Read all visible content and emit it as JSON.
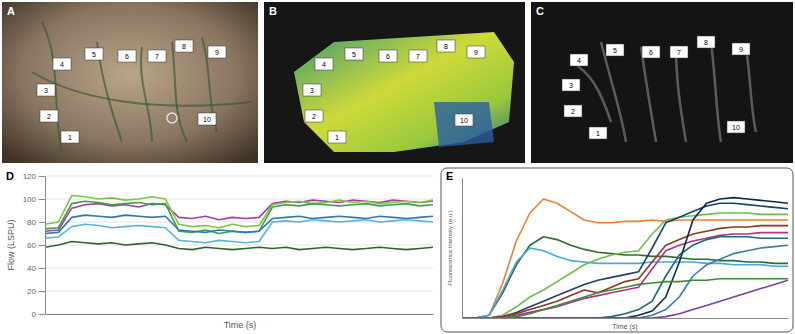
{
  "panels": [
    {
      "label": "A",
      "markers": [
        "1",
        "2",
        "3",
        "4",
        "5",
        "6",
        "7",
        "8",
        "9",
        "10"
      ]
    },
    {
      "label": "B",
      "markers": [
        "1",
        "2",
        "3",
        "4",
        "5",
        "6",
        "7",
        "8",
        "9",
        "10"
      ]
    },
    {
      "label": "C",
      "markers": [
        "1",
        "2",
        "3",
        "4",
        "5",
        "6",
        "7",
        "8",
        "9",
        "10"
      ]
    }
  ],
  "chart_data": [
    {
      "type": "line",
      "title": "D",
      "x_label": "Time (s)",
      "y_label": "Flow (LSPU)",
      "x": [
        0,
        1,
        2,
        3,
        4,
        5,
        6,
        7,
        8,
        9,
        10,
        11,
        12,
        13,
        14,
        15,
        16,
        17,
        18,
        19,
        20,
        21,
        22,
        23,
        24,
        25,
        26,
        27,
        28,
        29
      ],
      "xlim": [
        0,
        29
      ],
      "ylim": [
        0,
        120
      ],
      "yticks": [
        0,
        20,
        40,
        60,
        80,
        100,
        120
      ],
      "grid": true,
      "tick_labels": "y",
      "series": [
        {
          "color": "#a23fa6",
          "values": [
            72,
            73,
            92,
            95,
            96,
            94,
            95,
            93,
            96,
            95,
            84,
            83,
            85,
            82,
            84,
            83,
            84,
            96,
            98,
            97,
            99,
            98,
            97,
            99,
            98,
            97,
            99,
            98,
            97,
            98
          ]
        },
        {
          "color": "#7cc846",
          "values": [
            78,
            80,
            103,
            102,
            100,
            101,
            99,
            100,
            102,
            100,
            78,
            76,
            77,
            75,
            78,
            76,
            77,
            95,
            97,
            98,
            96,
            97,
            99,
            97,
            98,
            96,
            97,
            98,
            97,
            99
          ]
        },
        {
          "color": "#3e9e48",
          "values": [
            74,
            75,
            96,
            98,
            97,
            95,
            96,
            97,
            95,
            96,
            72,
            71,
            73,
            70,
            72,
            71,
            72,
            93,
            95,
            94,
            96,
            95,
            94,
            95,
            96,
            94,
            95,
            96,
            94,
            95
          ]
        },
        {
          "color": "#2f78b7",
          "values": [
            70,
            71,
            84,
            86,
            85,
            84,
            86,
            85,
            84,
            85,
            73,
            72,
            71,
            73,
            72,
            71,
            72,
            83,
            84,
            85,
            83,
            84,
            85,
            84,
            83,
            85,
            84,
            83,
            84,
            85
          ]
        },
        {
          "color": "#5bb3e2",
          "values": [
            66,
            67,
            76,
            78,
            77,
            75,
            76,
            77,
            76,
            75,
            64,
            63,
            62,
            64,
            63,
            62,
            63,
            80,
            81,
            80,
            82,
            81,
            80,
            81,
            82,
            80,
            81,
            82,
            81,
            80
          ]
        },
        {
          "color": "#2b6630",
          "values": [
            58,
            60,
            63,
            62,
            61,
            62,
            60,
            61,
            62,
            60,
            57,
            56,
            58,
            57,
            56,
            57,
            58,
            57,
            58,
            56,
            57,
            58,
            57,
            56,
            57,
            58,
            57,
            56,
            57,
            58
          ]
        }
      ]
    },
    {
      "type": "line",
      "title": "E",
      "x_label": "Time (s)",
      "y_label": "Fluorescence intensity (a.u.)",
      "x": [
        0,
        1,
        2,
        3,
        4,
        5,
        6,
        7,
        8,
        9,
        10,
        11,
        12,
        13,
        14,
        15,
        16,
        17,
        18,
        19,
        20,
        21,
        22,
        23,
        24
      ],
      "xlim": [
        0,
        24
      ],
      "ylim": [
        0,
        100
      ],
      "tick_labels": false,
      "series": [
        {
          "color": "#f07f2f",
          "values": [
            0,
            0,
            2,
            25,
            55,
            75,
            85,
            82,
            76,
            70,
            68,
            68,
            69,
            69,
            70,
            69,
            70,
            70,
            70,
            70,
            70,
            70,
            70,
            70,
            70
          ]
        },
        {
          "color": "#2d6a36",
          "values": [
            0,
            0,
            2,
            18,
            38,
            52,
            58,
            56,
            52,
            49,
            47,
            46,
            45,
            45,
            44,
            44,
            43,
            42,
            42,
            41,
            41,
            40,
            40,
            39,
            39
          ]
        },
        {
          "color": "#4aa8dd",
          "values": [
            0,
            0,
            2,
            20,
            40,
            50,
            48,
            44,
            41,
            40,
            39,
            39,
            39,
            39,
            40,
            40,
            40,
            40,
            39,
            39,
            38,
            38,
            38,
            37,
            37
          ]
        },
        {
          "color": "#6cc04a",
          "values": [
            0,
            0,
            0,
            2,
            8,
            15,
            20,
            26,
            32,
            38,
            42,
            45,
            47,
            48,
            60,
            70,
            72,
            73,
            74,
            75,
            75,
            75,
            74,
            74,
            74
          ]
        },
        {
          "color": "#1f3f6b",
          "values": [
            0,
            0,
            0,
            1,
            4,
            8,
            12,
            16,
            20,
            24,
            27,
            29,
            31,
            33,
            50,
            68,
            72,
            76,
            80,
            82,
            82,
            81,
            80,
            79,
            78
          ]
        },
        {
          "color": "#8b3a1e",
          "values": [
            0,
            0,
            0,
            1,
            3,
            6,
            9,
            12,
            16,
            20,
            18,
            22,
            26,
            28,
            40,
            52,
            56,
            60,
            62,
            64,
            65,
            65,
            66,
            66,
            66
          ]
        },
        {
          "color": "#b0308a",
          "values": [
            0,
            0,
            0,
            0,
            2,
            4,
            6,
            8,
            11,
            14,
            16,
            18,
            20,
            22,
            35,
            48,
            52,
            55,
            57,
            59,
            60,
            60,
            61,
            61,
            61
          ]
        },
        {
          "color": "#1a6a7a",
          "values": [
            0,
            0,
            0,
            0,
            0,
            0,
            0,
            0,
            0,
            0,
            0,
            1,
            3,
            6,
            12,
            30,
            45,
            52,
            56,
            58,
            58,
            58,
            57,
            57,
            57
          ]
        },
        {
          "color": "#0d2a40",
          "values": [
            0,
            0,
            0,
            0,
            0,
            0,
            0,
            0,
            0,
            0,
            0,
            0,
            0,
            2,
            5,
            15,
            40,
            70,
            82,
            85,
            86,
            85,
            84,
            83,
            82
          ]
        },
        {
          "color": "#3c7ea8",
          "values": [
            0,
            0,
            0,
            0,
            0,
            0,
            0,
            0,
            0,
            0,
            0,
            0,
            0,
            0,
            2,
            6,
            15,
            30,
            38,
            42,
            46,
            48,
            50,
            51,
            52
          ]
        },
        {
          "color": "#7a3fa0",
          "values": [
            0,
            0,
            0,
            0,
            0,
            0,
            0,
            0,
            0,
            0,
            0,
            0,
            0,
            0,
            0,
            1,
            3,
            6,
            9,
            12,
            15,
            18,
            21,
            24,
            27
          ]
        },
        {
          "color": "#3c8a3c",
          "values": [
            0,
            0,
            0,
            0,
            1,
            3,
            6,
            9,
            12,
            15,
            18,
            20,
            22,
            24,
            25,
            26,
            26,
            27,
            27,
            28,
            28,
            28,
            28,
            28,
            28
          ]
        }
      ]
    }
  ]
}
